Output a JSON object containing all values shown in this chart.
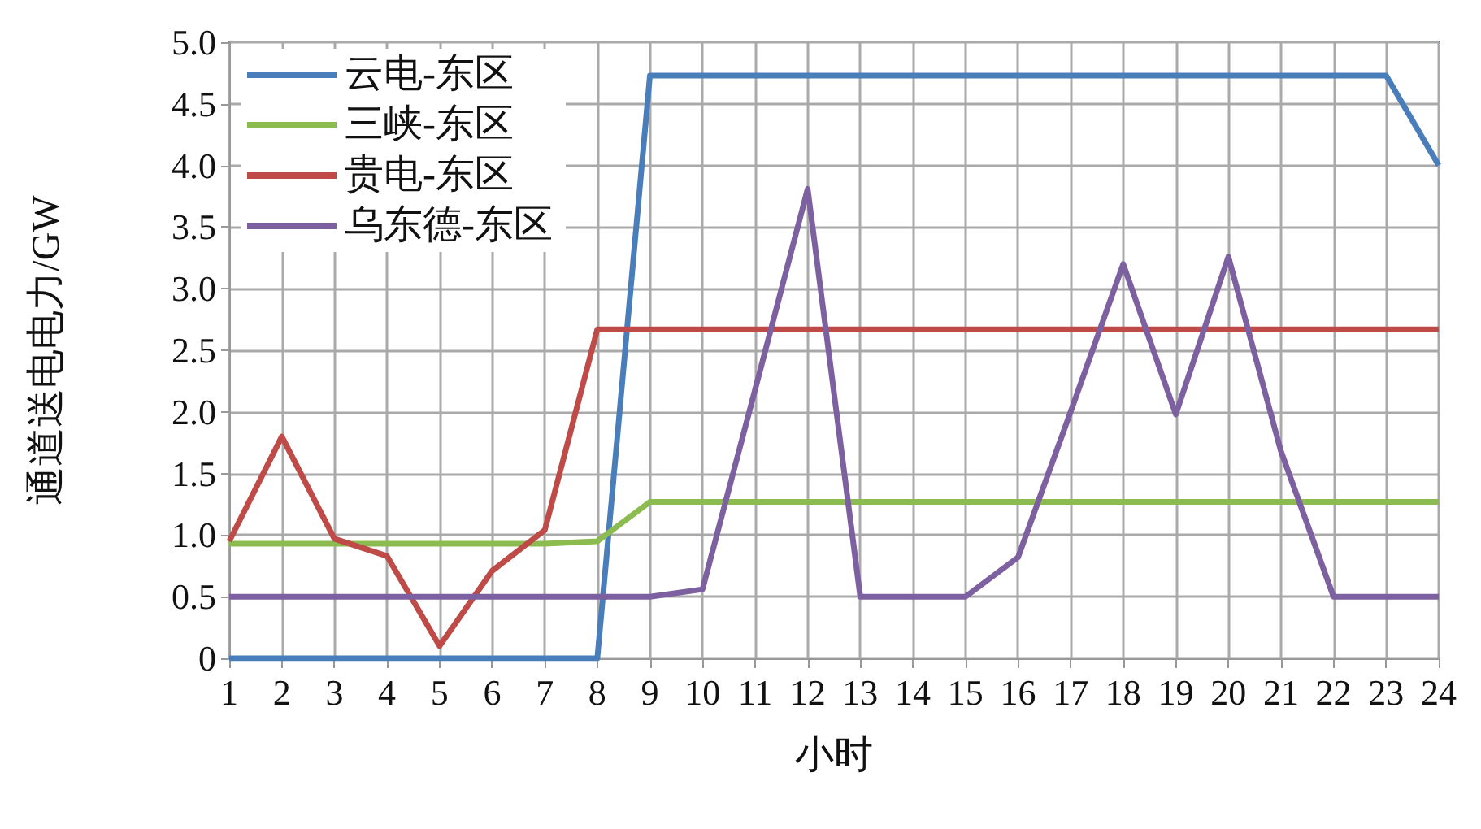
{
  "chart_data": {
    "type": "line",
    "xlabel": "小时",
    "ylabel": "通道送电电力/GW",
    "x": [
      1,
      2,
      3,
      4,
      5,
      6,
      7,
      8,
      9,
      10,
      11,
      12,
      13,
      14,
      15,
      16,
      17,
      18,
      19,
      20,
      21,
      22,
      23,
      24
    ],
    "series": [
      {
        "name": "云电-东区",
        "color": "#4a7ebb",
        "values": [
          0,
          0,
          0,
          0,
          0,
          0,
          0,
          0,
          4.73,
          4.73,
          4.73,
          4.73,
          4.73,
          4.73,
          4.73,
          4.73,
          4.73,
          4.73,
          4.73,
          4.73,
          4.73,
          4.73,
          4.73,
          4.0
        ]
      },
      {
        "name": "三峡-东区",
        "color": "#8cbb4f",
        "values": [
          0.93,
          0.93,
          0.93,
          0.93,
          0.93,
          0.93,
          0.93,
          0.95,
          1.27,
          1.27,
          1.27,
          1.27,
          1.27,
          1.27,
          1.27,
          1.27,
          1.27,
          1.27,
          1.27,
          1.27,
          1.27,
          1.27,
          1.27,
          1.27
        ]
      },
      {
        "name": "贵电-东区",
        "color": "#be4b48",
        "values": [
          0.95,
          1.8,
          0.97,
          0.83,
          0.1,
          0.71,
          1.04,
          2.67,
          2.67,
          2.67,
          2.67,
          2.67,
          2.67,
          2.67,
          2.67,
          2.67,
          2.67,
          2.67,
          2.67,
          2.67,
          2.67,
          2.67,
          2.67,
          2.67
        ]
      },
      {
        "name": "乌东德-东区",
        "color": "#7d60a0",
        "values": [
          0.5,
          0.5,
          0.5,
          0.5,
          0.5,
          0.5,
          0.5,
          0.5,
          0.5,
          0.56,
          2.18,
          3.81,
          0.5,
          0.5,
          0.5,
          0.82,
          2.0,
          3.2,
          1.98,
          3.26,
          1.68,
          0.5,
          0.5,
          0.5
        ]
      }
    ],
    "xlim": [
      1,
      24
    ],
    "xticks": [
      1,
      2,
      3,
      4,
      5,
      6,
      7,
      8,
      9,
      10,
      11,
      12,
      13,
      14,
      15,
      16,
      17,
      18,
      19,
      20,
      21,
      22,
      23,
      24
    ],
    "ylim": [
      0,
      5
    ],
    "yticks": [
      0,
      0.5,
      {
        "value": 1,
        "label": "1.0"
      },
      1.5,
      {
        "value": 2,
        "label": "2.0"
      },
      2.5,
      {
        "value": 3,
        "label": "3.0"
      },
      3.5,
      {
        "value": 4,
        "label": "4.0"
      },
      4.5,
      {
        "value": 5,
        "label": "5.0"
      }
    ],
    "grid": true,
    "legend": "top left",
    "marker": "none",
    "line_style": "solid"
  }
}
